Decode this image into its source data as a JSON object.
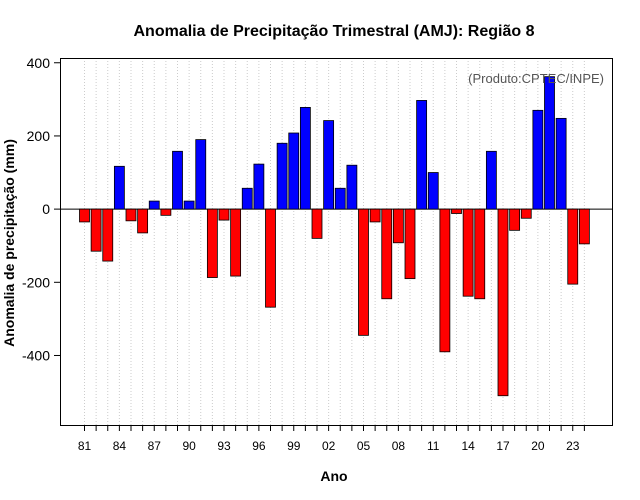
{
  "chart_data": {
    "type": "bar",
    "title": "Anomalia de Precipitação Trimestral (AMJ): Região 8",
    "xlabel": "Ano",
    "ylabel": "Anomalia de precipitação (mm)",
    "credit": "(Produto:CPTEC/INPE)",
    "years": [
      1981,
      1982,
      1983,
      1984,
      1985,
      1986,
      1987,
      1988,
      1989,
      1990,
      1991,
      1992,
      1993,
      1994,
      1995,
      1996,
      1997,
      1998,
      1999,
      2000,
      2001,
      2002,
      2003,
      2004,
      2005,
      2006,
      2007,
      2008,
      2009,
      2010,
      2011,
      2012,
      2013,
      2014,
      2015,
      2016,
      2017,
      2018,
      2019,
      2020,
      2021,
      2022,
      2023,
      2024
    ],
    "values": [
      -35,
      -115,
      -142,
      117,
      -32,
      -65,
      22,
      -17,
      158,
      22,
      190,
      -187,
      -30,
      -183,
      57,
      123,
      -268,
      180,
      208,
      278,
      -80,
      242,
      57,
      120,
      -345,
      -35,
      -245,
      -92,
      -190,
      297,
      100,
      -390,
      -12,
      -238,
      -245,
      158,
      -510,
      -58,
      -25,
      270,
      362,
      248,
      -205,
      -95
    ],
    "xtick_labels": [
      "81",
      "84",
      "87",
      "90",
      "93",
      "96",
      "99",
      "02",
      "05",
      "08",
      "11",
      "14",
      "17",
      "20",
      "23"
    ],
    "ytick_labels": [
      "-400",
      "-200",
      "0",
      "200",
      "400"
    ],
    "yticks": [
      -400,
      -200,
      0,
      200,
      400
    ],
    "ylim": [
      -590,
      413
    ],
    "grid": "vertical-dotted",
    "positive_color": "#0000ff",
    "negative_color": "#ff0000"
  }
}
